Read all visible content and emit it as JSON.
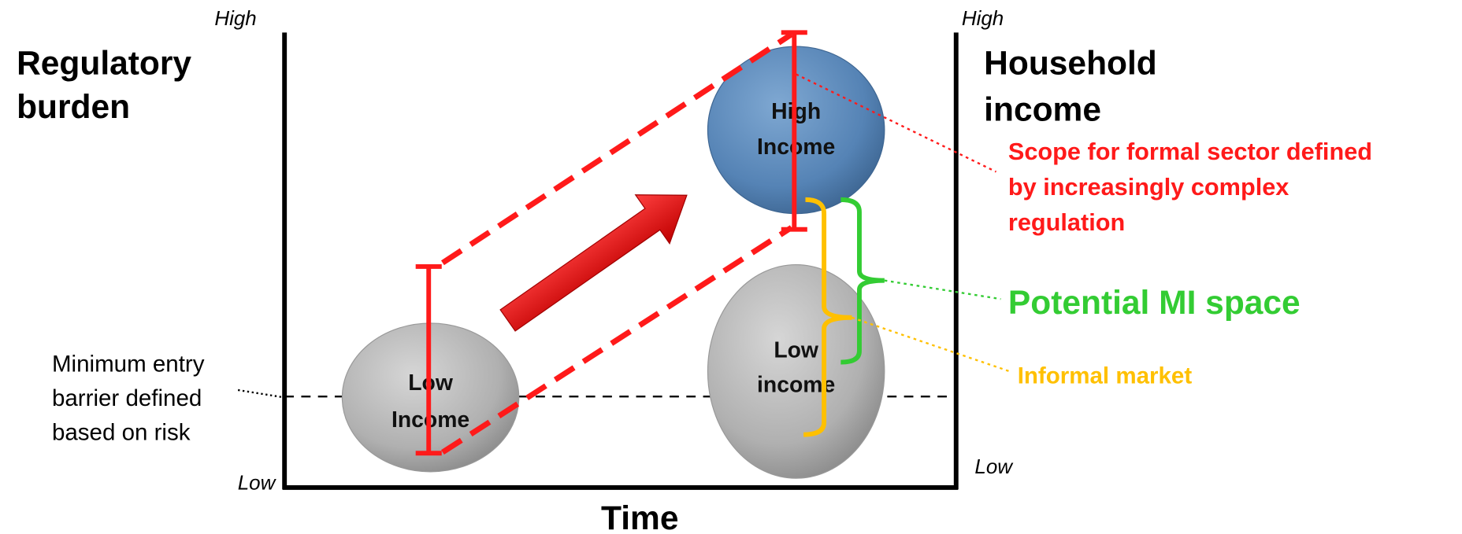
{
  "left_axis": {
    "high": "High",
    "low": "Low",
    "title": [
      "Regulatory",
      "burden"
    ]
  },
  "right_axis": {
    "high": "High",
    "low": "Low",
    "title": [
      "Household",
      "income"
    ]
  },
  "x_axis": {
    "title": "Time"
  },
  "nodes": [
    {
      "label": [
        "Low",
        "Income"
      ]
    },
    {
      "label": [
        "High",
        "Income"
      ]
    },
    {
      "label": [
        "Low",
        "income"
      ]
    }
  ],
  "annotations": {
    "minimum_barrier": [
      "Minimum entry",
      "barrier defined",
      "based on risk"
    ],
    "scope": [
      "Scope for formal sector defined",
      "by increasingly complex",
      "regulation"
    ],
    "mi_space": "Potential MI space",
    "informal": "Informal market"
  }
}
